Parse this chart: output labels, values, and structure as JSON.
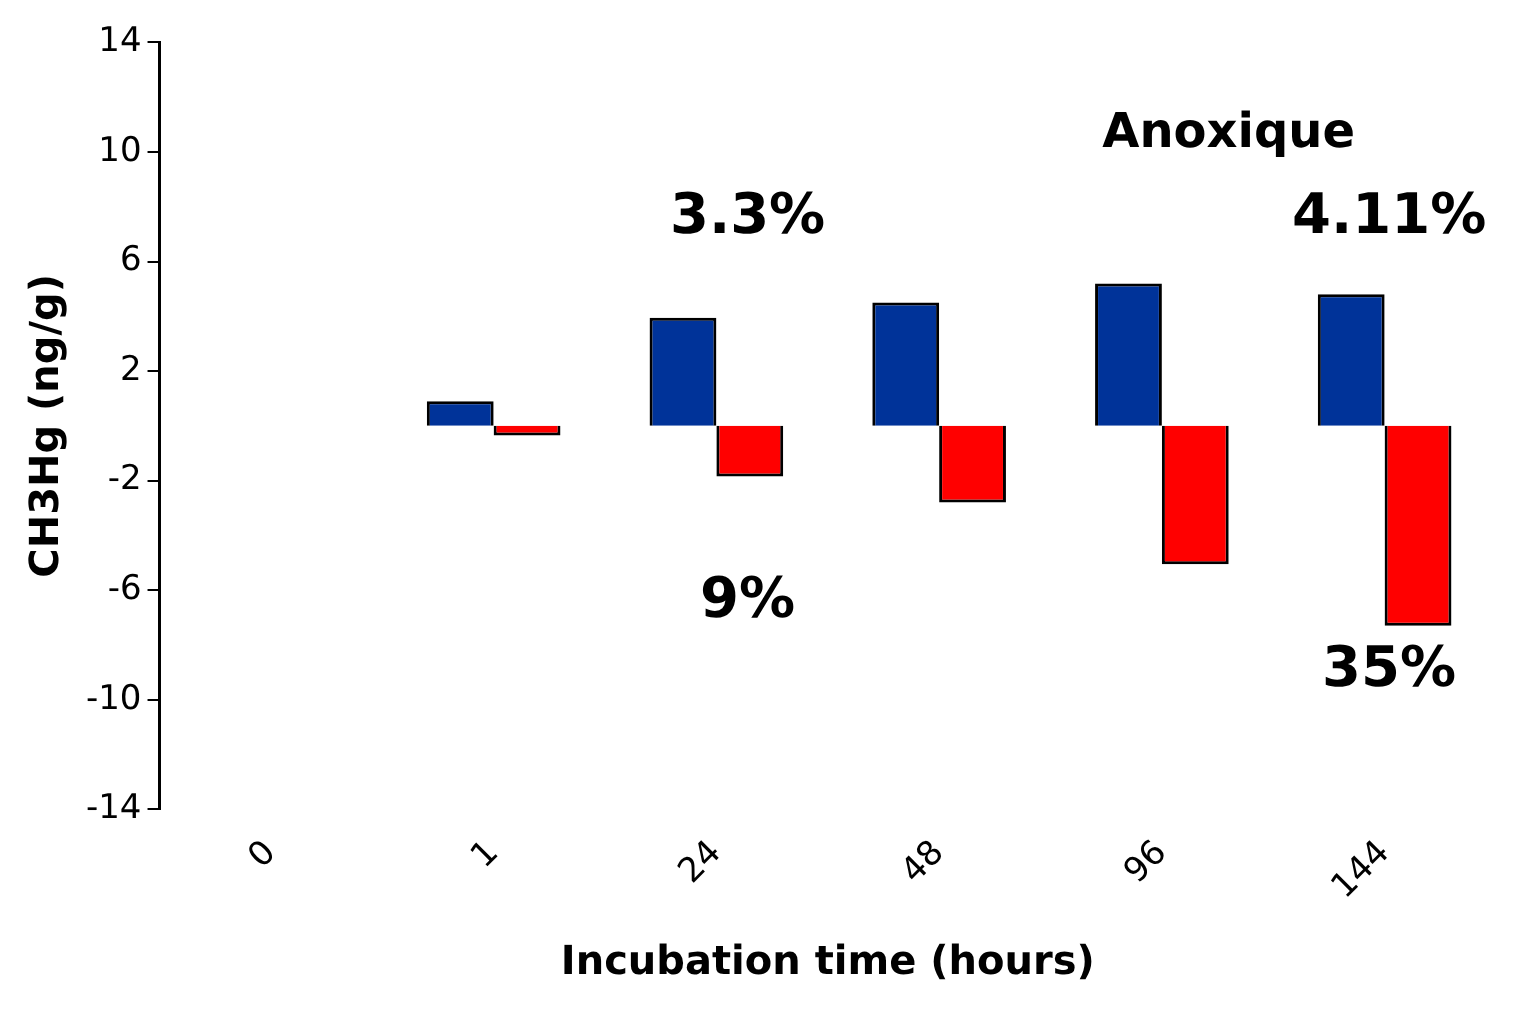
{
  "chart_data": {
    "type": "bar",
    "xlabel": "Incubation time (hours)",
    "ylabel": "CH3Hg (ng/g)",
    "categories": [
      "0",
      "1",
      "24",
      "48",
      "96",
      "144"
    ],
    "series": [
      {
        "color": "#003399",
        "values": [
          null,
          0.9,
          3.95,
          4.5,
          5.2,
          4.8
        ]
      },
      {
        "color": "#ff0000",
        "values": [
          null,
          -0.35,
          -1.85,
          -2.8,
          -5.05,
          -7.3
        ]
      }
    ],
    "ylim": [
      -14,
      14
    ],
    "yticks": [
      14,
      10,
      6,
      2,
      -2,
      -6,
      -10,
      -14
    ],
    "grid": false,
    "legend": false,
    "annotations": [
      "Anoxique",
      "3.3%",
      "4.11%",
      "9%",
      "35%"
    ]
  }
}
